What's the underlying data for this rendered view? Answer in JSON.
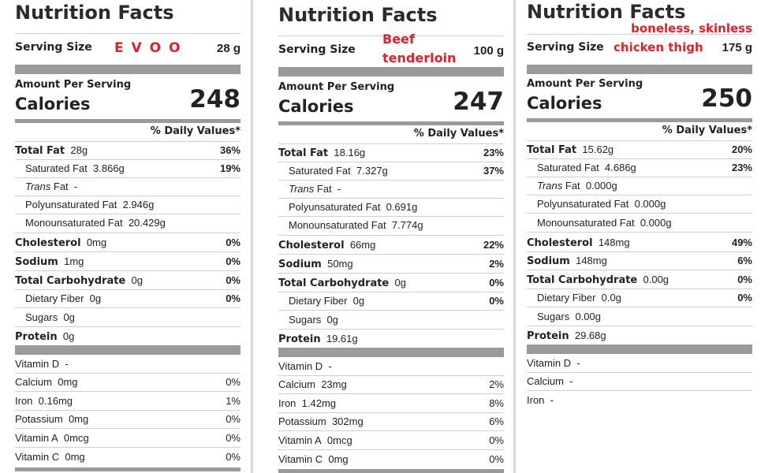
{
  "colors": {
    "rule": "#9a9a9a",
    "accent_red": "#e0202a",
    "divider": "#d9d9d9"
  },
  "labels": {
    "title": "Nutrition Facts",
    "serving_size": "Serving Size",
    "amount_per_serving": "Amount Per Serving",
    "calories": "Calories",
    "daily_values": "% Daily Values*",
    "total_fat": "Total Fat",
    "saturated_fat": "Saturated Fat",
    "trans": "Trans",
    "trans_fat_suffix": "Fat",
    "poly_fat": "Polyunsaturated Fat",
    "mono_fat": "Monounsaturated Fat",
    "cholesterol": "Cholesterol",
    "sodium": "Sodium",
    "total_carb": "Total Carbohydrate",
    "fiber": "Dietary Fiber",
    "sugars": "Sugars",
    "protein": "Protein",
    "vitamin_d": "Vitamin D",
    "calcium": "Calcium",
    "iron": "Iron",
    "potassium": "Potassium",
    "vitamin_a": "Vitamin A",
    "vitamin_c": "Vitamin C"
  },
  "panels": [
    {
      "food_line1": "E V O O",
      "serving_value": "28 g",
      "calories": "248",
      "total_fat": "28g",
      "total_fat_pct": "36%",
      "sat_fat": "3.866g",
      "sat_fat_pct": "19%",
      "trans_fat": "-",
      "poly_fat": "2.946g",
      "mono_fat": "20.429g",
      "cholesterol": "0mg",
      "cholesterol_pct": "0%",
      "sodium": "1mg",
      "sodium_pct": "0%",
      "carb": "0g",
      "carb_pct": "0%",
      "fiber": "0g",
      "fiber_pct": "0%",
      "sugars": "0g",
      "protein": "0g",
      "vitamin_d": "-",
      "calcium": "0mg",
      "calcium_pct": "0%",
      "iron": "0.16mg",
      "iron_pct": "1%",
      "potassium": "0mg",
      "potassium_pct": "0%",
      "vitamin_a": "0mcg",
      "vitamin_a_pct": "0%",
      "vitamin_c": "0mg",
      "vitamin_c_pct": "0%"
    },
    {
      "food_line1": "Beef",
      "food_line2": "tenderloin",
      "serving_value": "100 g",
      "calories": "247",
      "total_fat": "18.16g",
      "total_fat_pct": "23%",
      "sat_fat": "7.327g",
      "sat_fat_pct": "37%",
      "trans_fat": "-",
      "poly_fat": "0.691g",
      "mono_fat": "7.774g",
      "cholesterol": "66mg",
      "cholesterol_pct": "22%",
      "sodium": "50mg",
      "sodium_pct": "2%",
      "carb": "0g",
      "carb_pct": "0%",
      "fiber": "0g",
      "fiber_pct": "0%",
      "sugars": "0g",
      "protein": "19.61g",
      "vitamin_d": "-",
      "calcium": "23mg",
      "calcium_pct": "2%",
      "iron": "1.42mg",
      "iron_pct": "8%",
      "potassium": "302mg",
      "potassium_pct": "6%",
      "vitamin_a": "0mcg",
      "vitamin_a_pct": "0%",
      "vitamin_c": "0mg",
      "vitamin_c_pct": "0%"
    },
    {
      "food_line1": "boneless, skinless",
      "food_line2": "chicken thigh",
      "serving_value": "175 g",
      "calories": "250",
      "total_fat": "15.62g",
      "total_fat_pct": "20%",
      "sat_fat": "4.686g",
      "sat_fat_pct": "23%",
      "trans_fat": "0.000g",
      "poly_fat": "0.000g",
      "mono_fat": "0.000g",
      "cholesterol": "148mg",
      "cholesterol_pct": "49%",
      "sodium": "148mg",
      "sodium_pct": "6%",
      "carb": "0.00g",
      "carb_pct": "0%",
      "fiber": "0.0g",
      "fiber_pct": "0%",
      "sugars": "0.00g",
      "protein": "29.68g",
      "vitamin_d": "-",
      "calcium": "-",
      "iron": "-"
    }
  ]
}
